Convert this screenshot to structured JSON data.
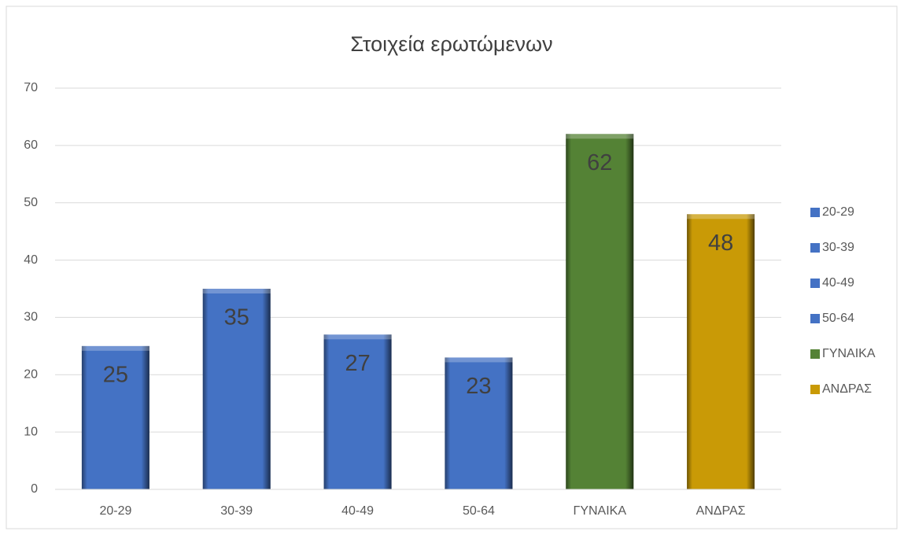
{
  "chart_data": {
    "type": "bar",
    "title": "Στοιχεία ερωτώμενων",
    "categories": [
      "20-29",
      "30-39",
      "40-49",
      "50-64",
      "ΓΥΝΑΙΚΑ",
      "ΑΝΔΡΑΣ"
    ],
    "values": [
      25,
      35,
      27,
      23,
      62,
      48
    ],
    "colors": [
      "#4472c4",
      "#4472c4",
      "#4472c4",
      "#4472c4",
      "#548235",
      "#c99a06"
    ],
    "ylim": [
      0,
      70
    ],
    "yticks": [
      0,
      10,
      20,
      30,
      40,
      50,
      60,
      70
    ],
    "grid": true,
    "legend": "right"
  }
}
